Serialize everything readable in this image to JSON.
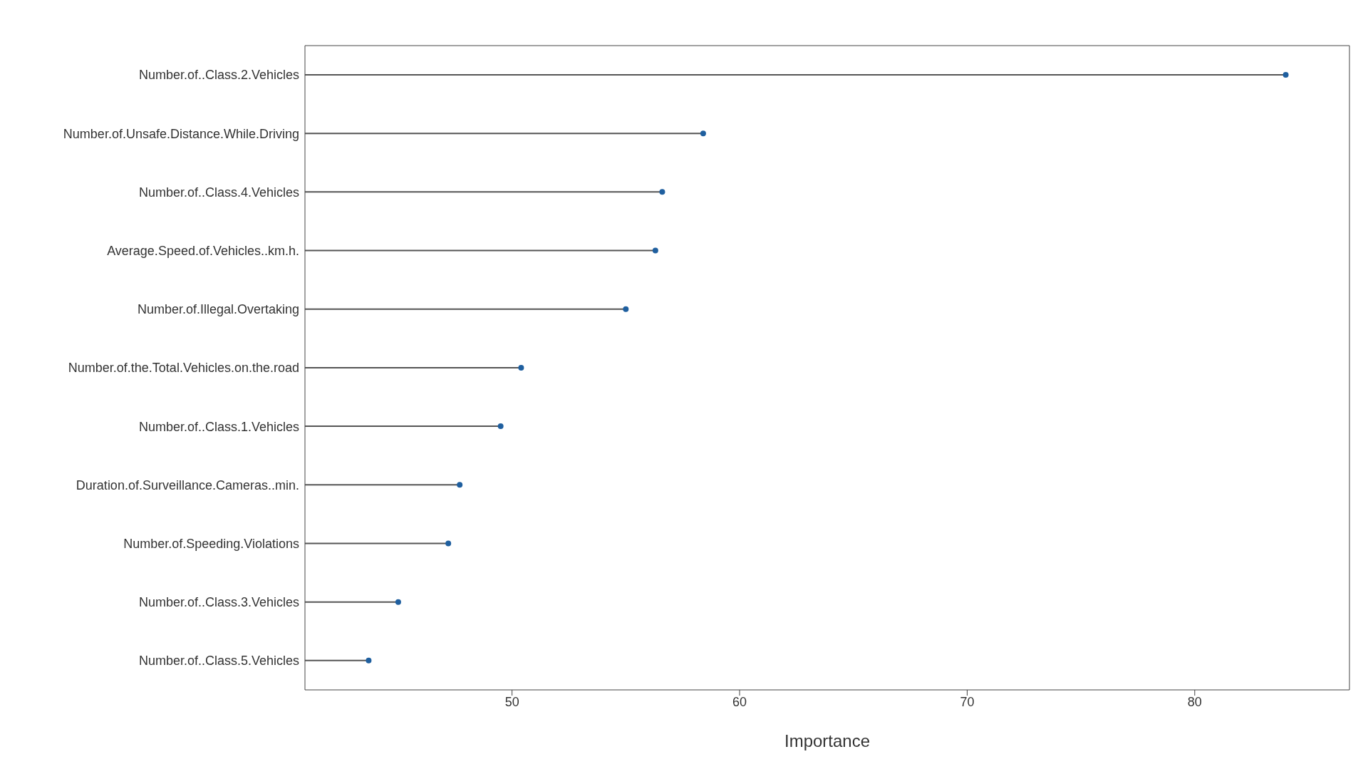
{
  "chart_data": {
    "type": "lollipop",
    "orientation": "horizontal",
    "xlabel": "Importance",
    "categories": [
      "Number.of..Class.2.Vehicles",
      "Number.of.Unsafe.Distance.While.Driving",
      "Number.of..Class.4.Vehicles",
      "Average.Speed.of.Vehicles..km.h.",
      "Number.of.Illegal.Overtaking",
      "Number.of.the.Total.Vehicles.on.the.road",
      "Number.of..Class.1.Vehicles",
      "Duration.of.Surveillance.Cameras..min.",
      "Number.of.Speeding.Violations",
      "Number.of..Class.3.Vehicles",
      "Number.of..Class.5.Vehicles"
    ],
    "values": [
      84.0,
      58.4,
      56.6,
      56.3,
      55.0,
      50.4,
      49.5,
      47.7,
      47.2,
      45.0,
      43.7
    ],
    "color": "#1f5f9f",
    "marker": "circle",
    "xlim": [
      40.9,
      86.8
    ],
    "xticks": [
      50,
      60,
      70,
      80
    ]
  }
}
